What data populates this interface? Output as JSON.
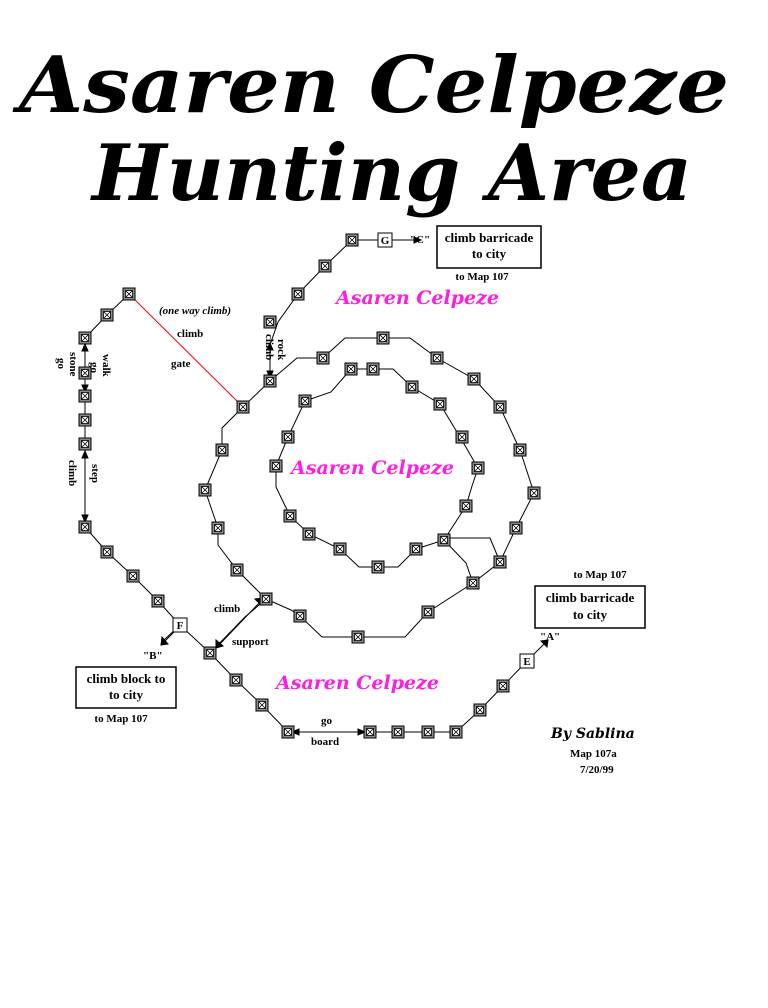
{
  "title": {
    "line1": "Asaren Celpeze",
    "line2": "Hunting Area"
  },
  "area_labels": [
    "Asaren Celpeze",
    "Asaren Celpeze",
    "Asaren Celpeze"
  ],
  "exit_boxes": [
    {
      "text": [
        "climb barricade",
        "to city"
      ],
      "map_ref": "to Map 107"
    },
    {
      "text": [
        "climb barricade",
        "to city"
      ],
      "map_ref": "to Map 107"
    },
    {
      "text": [
        "climb block to",
        "to city"
      ],
      "map_ref": "to Map 107"
    }
  ],
  "room_labels": {
    "G": "G",
    "F": "F",
    "E": "E"
  },
  "exit_markers": {
    "C": "\"C\"",
    "B": "\"B\"",
    "A": "\"A\""
  },
  "path_labels": {
    "one_way": "(one way climb)",
    "climb": "climb",
    "gate": "gate",
    "climb_rock_1": "climb",
    "climb_rock_2": "rock",
    "go_stone_1": "go",
    "go_stone_2": "stone",
    "go_walk_1": "go",
    "go_walk_2": "walk",
    "climb_step_1": "climb",
    "climb_step_2": "step",
    "climb_support_1": "climb",
    "climb_support_2": "support",
    "go_board_1": "go",
    "go_board_2": "board"
  },
  "credits": {
    "author": "By Sablina",
    "map": "Map 107a",
    "date": "7/20/99"
  },
  "colors": {
    "area_label": "#ff1ee0",
    "room_fill": "#8a8a8a",
    "line": "#000000",
    "one_way_line": "#ff0000"
  }
}
